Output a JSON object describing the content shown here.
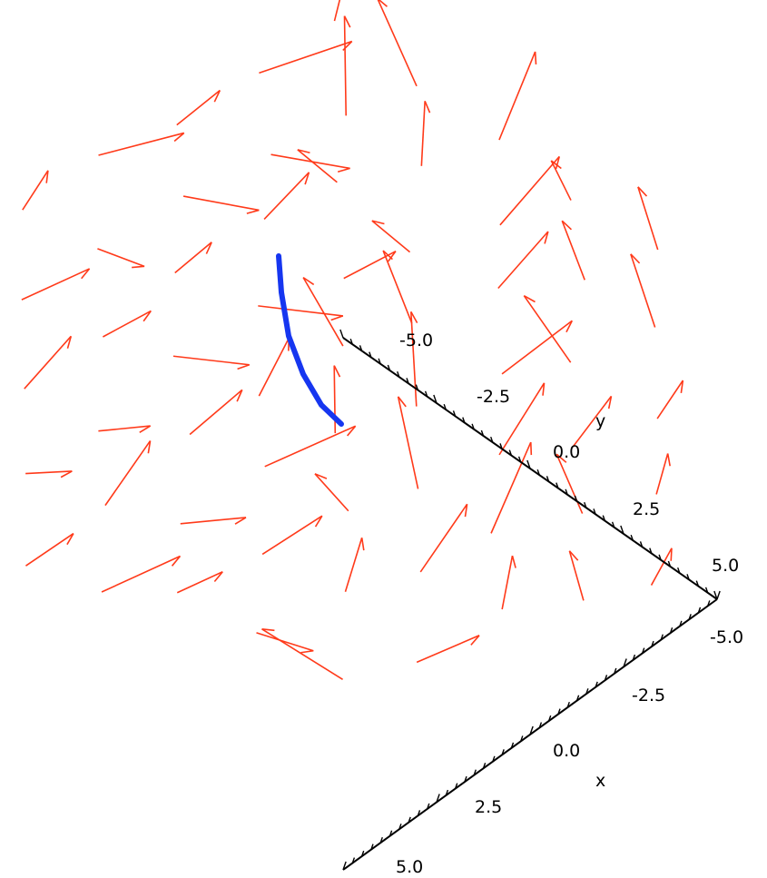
{
  "chart_data": {
    "type": "vector-field-3d",
    "colors": {
      "field": "#ff3a1a",
      "curve": "#1636f0",
      "axis": "#000000"
    },
    "axes": {
      "x": {
        "label": "x",
        "range": [
          -5,
          5
        ],
        "ticks": [
          "5.0",
          "2.5",
          "0.0",
          "-2.5",
          "-5.0"
        ]
      },
      "y": {
        "label": "y",
        "range": [
          -5,
          5
        ],
        "ticks": [
          "-5.0",
          "-2.5",
          "0.0",
          "2.5",
          "5.0"
        ]
      }
    },
    "series": [
      {
        "kind": "field-arrows",
        "grid": [
          -5,
          -2.5,
          0,
          2.5,
          5
        ]
      },
      {
        "kind": "curve",
        "points": [
          [
            -1.2,
            -5.0
          ],
          [
            -1.5,
            -3.8
          ],
          [
            -1.8,
            -2.6
          ],
          [
            -1.9,
            -1.3
          ]
        ]
      }
    ]
  }
}
